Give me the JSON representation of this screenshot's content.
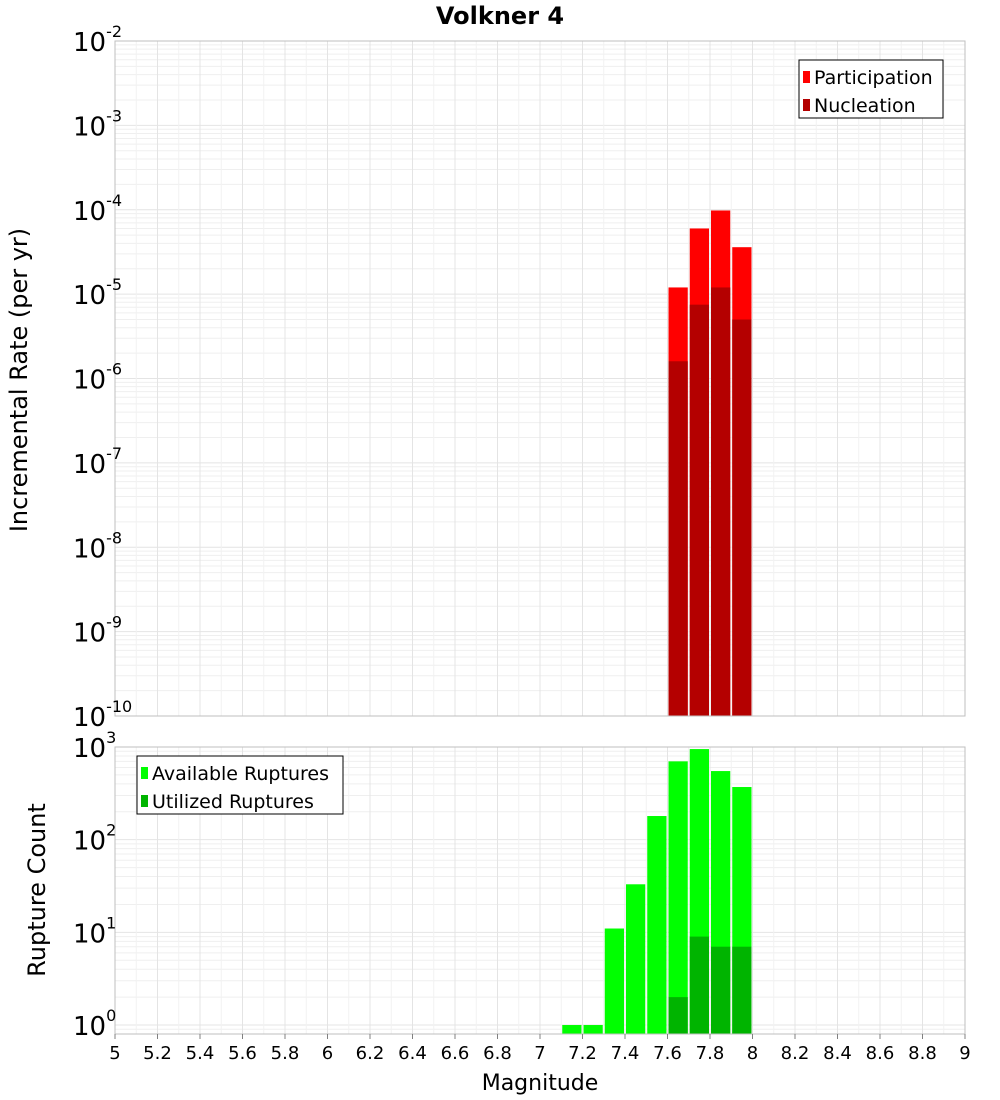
{
  "chart_data": [
    {
      "type": "bar",
      "title": "Volkner 4",
      "ylabel": "Incremental Rate (per yr)",
      "yscale": "log",
      "ylim": [
        1e-10,
        0.01
      ],
      "ytick_exponents": [
        "-10",
        "-9",
        "-8",
        "-7",
        "-6",
        "-5",
        "-4",
        "-3",
        "-2"
      ],
      "ytick_base": "10",
      "x": [
        7.65,
        7.75,
        7.85,
        7.95
      ],
      "series": [
        {
          "name": "Participation",
          "color": "#ff0000",
          "values": [
            1.2e-05,
            6e-05,
            9.8e-05,
            3.6e-05
          ]
        },
        {
          "name": "Nucleation",
          "color": "#b40000",
          "values": [
            1.6e-06,
            7.5e-06,
            1.2e-05,
            5e-06
          ]
        }
      ],
      "legend": "top-right",
      "grid": true
    },
    {
      "type": "bar",
      "ylabel": "Rupture Count",
      "xlabel": "Magnitude",
      "yscale": "log",
      "ylim": [
        0.8,
        1000
      ],
      "ytick_exponents": [
        "0",
        "1",
        "2",
        "3"
      ],
      "ytick_base": "10",
      "xlim": [
        5,
        9
      ],
      "xticks": [
        "5",
        "5.2",
        "5.4",
        "5.6",
        "5.8",
        "6",
        "6.2",
        "6.4",
        "6.6",
        "6.8",
        "7",
        "7.2",
        "7.4",
        "7.6",
        "7.8",
        "8",
        "8.2",
        "8.4",
        "8.6",
        "8.8",
        "9"
      ],
      "x": [
        7.15,
        7.25,
        7.35,
        7.45,
        7.55,
        7.65,
        7.75,
        7.85,
        7.95
      ],
      "series": [
        {
          "name": "Available Ruptures",
          "color": "#00ff00",
          "values": [
            1,
            1,
            11,
            33,
            180,
            700,
            950,
            550,
            370
          ]
        },
        {
          "name": "Utilized Ruptures",
          "color": "#00b400",
          "values": [
            0,
            0,
            0,
            0,
            0,
            2,
            9,
            7,
            7
          ]
        }
      ],
      "legend": "top-left",
      "grid": true
    }
  ]
}
